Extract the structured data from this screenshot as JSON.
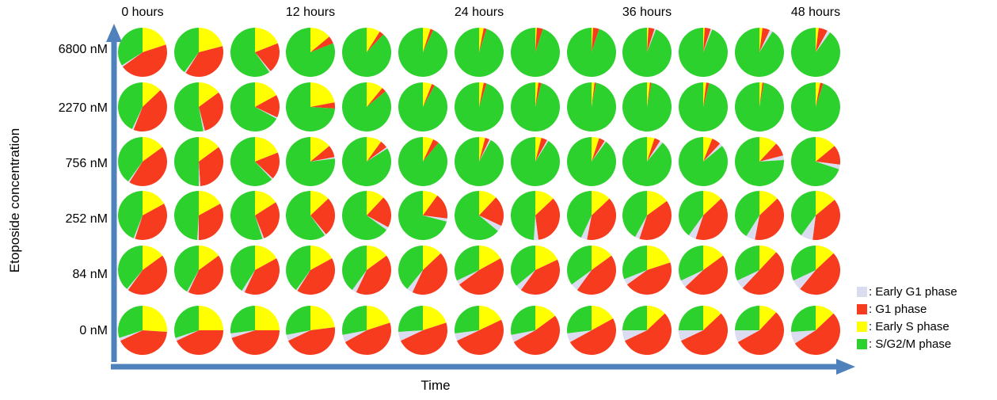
{
  "chart_data": {
    "type": "pie",
    "layout": "grid-of-pies",
    "title": "",
    "xlabel": "Time",
    "ylabel": "Etoposide concentration",
    "axis_color": "#4f81bd",
    "x_axis": {
      "tick_labels": [
        "0 hours",
        "12 hours",
        "24 hours",
        "36 hours",
        "48 hours"
      ],
      "tick_columns": [
        0,
        3,
        6,
        9,
        12
      ],
      "columns_hours": [
        0,
        4,
        8,
        12,
        16,
        20,
        24,
        28,
        32,
        36,
        40,
        44,
        48
      ]
    },
    "y_axis": {
      "tick_labels": [
        "6800 nM",
        "2270 nM",
        "756 nM",
        "252 nM",
        "84 nM",
        "0 nM"
      ]
    },
    "phases": [
      {
        "key": "early_g1",
        "label": ": Early G1 phase",
        "color": "#dcdcf0"
      },
      {
        "key": "g1",
        "label": ": G1 phase",
        "color": "#f73b1e"
      },
      {
        "key": "early_s",
        "label": ": Early S phase",
        "color": "#ffff00"
      },
      {
        "key": "s_g2_m",
        "label": ": S/G2/M phase",
        "color": "#2dd12d"
      }
    ],
    "pie_value_order": [
      "early_g1",
      "g1",
      "early_s",
      "s_g2_m"
    ],
    "slice_order_clockwise_from_top": [
      "early_s",
      "g1",
      "early_g1",
      "s_g2_m"
    ],
    "rows": [
      {
        "concentration": "6800 nM",
        "values_pct": [
          [
            1,
            45,
            20,
            34
          ],
          [
            1,
            38,
            21,
            40
          ],
          [
            1,
            20,
            19,
            60
          ],
          [
            0,
            5,
            14,
            81
          ],
          [
            0,
            3,
            9,
            88
          ],
          [
            0,
            2,
            5,
            93
          ],
          [
            0,
            2,
            3,
            95
          ],
          [
            0,
            4,
            1,
            95
          ],
          [
            0,
            4,
            1,
            95
          ],
          [
            1,
            4,
            1,
            94
          ],
          [
            1,
            4,
            1,
            94
          ],
          [
            2,
            5,
            2,
            91
          ],
          [
            2,
            6,
            2,
            90
          ]
        ]
      },
      {
        "concentration": "2270 nM",
        "values_pct": [
          [
            1,
            43,
            13,
            43
          ],
          [
            1,
            31,
            15,
            53
          ],
          [
            1,
            15,
            17,
            67
          ],
          [
            0,
            4,
            22,
            74
          ],
          [
            0,
            3,
            11,
            86
          ],
          [
            0,
            2,
            6,
            92
          ],
          [
            0,
            2,
            3,
            95
          ],
          [
            0,
            2,
            2,
            96
          ],
          [
            0,
            1,
            2,
            97
          ],
          [
            0,
            1,
            2,
            97
          ],
          [
            0,
            2,
            2,
            96
          ],
          [
            0,
            1,
            2,
            97
          ],
          [
            0,
            2,
            3,
            95
          ]
        ]
      },
      {
        "concentration": "756 nM",
        "values_pct": [
          [
            1,
            44,
            15,
            40
          ],
          [
            1,
            34,
            15,
            50
          ],
          [
            1,
            18,
            19,
            62
          ],
          [
            1,
            8,
            14,
            77
          ],
          [
            1,
            5,
            10,
            84
          ],
          [
            0,
            4,
            7,
            89
          ],
          [
            1,
            3,
            4,
            92
          ],
          [
            1,
            4,
            4,
            91
          ],
          [
            1,
            4,
            5,
            90
          ],
          [
            2,
            4,
            5,
            89
          ],
          [
            2,
            6,
            6,
            86
          ],
          [
            3,
            9,
            12,
            76
          ],
          [
            3,
            13,
            14,
            70
          ]
        ]
      },
      {
        "concentration": "252 nM",
        "values_pct": [
          [
            1,
            38,
            17,
            44
          ],
          [
            1,
            33,
            17,
            49
          ],
          [
            1,
            28,
            16,
            55
          ],
          [
            1,
            26,
            13,
            60
          ],
          [
            2,
            21,
            12,
            65
          ],
          [
            2,
            17,
            10,
            71
          ],
          [
            4,
            20,
            12,
            64
          ],
          [
            3,
            35,
            13,
            49
          ],
          [
            4,
            40,
            13,
            43
          ],
          [
            3,
            40,
            15,
            42
          ],
          [
            5,
            42,
            13,
            40
          ],
          [
            6,
            40,
            13,
            41
          ],
          [
            8,
            38,
            14,
            40
          ]
        ]
      },
      {
        "concentration": "84 nM",
        "values_pct": [
          [
            1,
            45,
            15,
            39
          ],
          [
            1,
            42,
            15,
            42
          ],
          [
            2,
            40,
            17,
            41
          ],
          [
            1,
            42,
            17,
            40
          ],
          [
            3,
            42,
            15,
            40
          ],
          [
            4,
            44,
            13,
            39
          ],
          [
            3,
            48,
            17,
            32
          ],
          [
            4,
            42,
            18,
            36
          ],
          [
            5,
            45,
            15,
            35
          ],
          [
            4,
            45,
            20,
            31
          ],
          [
            5,
            48,
            15,
            32
          ],
          [
            6,
            50,
            12,
            32
          ],
          [
            7,
            48,
            13,
            32
          ]
        ]
      },
      {
        "concentration": "0 nM",
        "values_pct": [
          [
            2,
            42,
            26,
            30
          ],
          [
            2,
            43,
            25,
            30
          ],
          [
            3,
            45,
            25,
            27
          ],
          [
            4,
            45,
            23,
            28
          ],
          [
            5,
            47,
            20,
            28
          ],
          [
            6,
            48,
            20,
            26
          ],
          [
            5,
            50,
            18,
            27
          ],
          [
            5,
            52,
            15,
            28
          ],
          [
            6,
            50,
            17,
            27
          ],
          [
            7,
            55,
            13,
            25
          ],
          [
            7,
            55,
            13,
            25
          ],
          [
            8,
            55,
            12,
            25
          ],
          [
            8,
            53,
            13,
            26
          ]
        ]
      }
    ]
  }
}
